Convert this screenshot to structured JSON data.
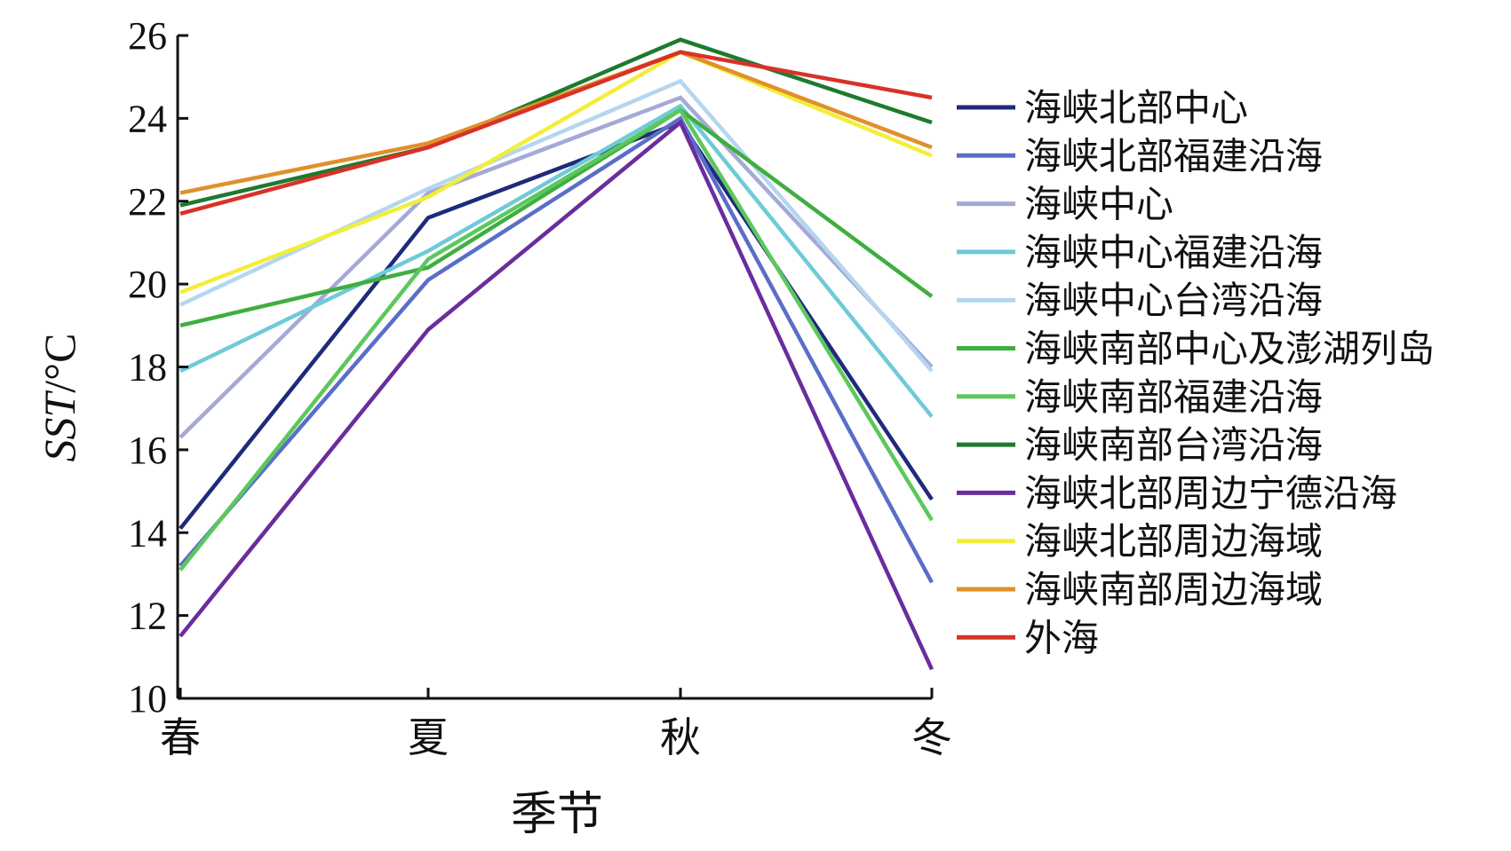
{
  "chart_data": {
    "type": "line",
    "categories": [
      "春",
      "夏",
      "秋",
      "冬"
    ],
    "xlabel": "季节",
    "ylabel_prefix": "SST",
    "ylabel_unit": "/°C",
    "ylim": [
      10,
      26
    ],
    "yticks": [
      10,
      12,
      14,
      16,
      18,
      20,
      22,
      24,
      26
    ],
    "grid": false,
    "legend_position": "right",
    "series": [
      {
        "name": "海峡北部中心",
        "color": "#1f2a7a",
        "values": [
          14.1,
          21.6,
          23.9,
          14.8
        ]
      },
      {
        "name": "海峡北部福建沿海",
        "color": "#5a6ec8",
        "values": [
          13.2,
          20.1,
          24.0,
          12.8
        ]
      },
      {
        "name": "海峡中心",
        "color": "#a5a9d6",
        "values": [
          16.3,
          22.2,
          24.5,
          18.0
        ]
      },
      {
        "name": "海峡中心福建沿海",
        "color": "#6fcad8",
        "values": [
          17.9,
          20.8,
          24.3,
          16.8
        ]
      },
      {
        "name": "海峡中心台湾沿海",
        "color": "#b4d6f0",
        "values": [
          19.5,
          22.3,
          24.9,
          17.9
        ]
      },
      {
        "name": "海峡南部中心及澎湖列岛",
        "color": "#3fae3f",
        "values": [
          19.0,
          20.4,
          24.2,
          19.7
        ]
      },
      {
        "name": "海峡南部福建沿海",
        "color": "#5cc85c",
        "values": [
          13.1,
          20.6,
          24.2,
          14.3
        ]
      },
      {
        "name": "海峡南部台湾沿海",
        "color": "#1e7a2e",
        "values": [
          21.9,
          23.3,
          25.9,
          23.9
        ]
      },
      {
        "name": "海峡北部周边宁德沿海",
        "color": "#6a2c9e",
        "values": [
          11.5,
          18.9,
          23.9,
          10.7
        ]
      },
      {
        "name": "海峡北部周边海域",
        "color": "#f2ee3a",
        "values": [
          19.8,
          22.1,
          25.6,
          23.1
        ]
      },
      {
        "name": "海峡南部周边海域",
        "color": "#e0902a",
        "values": [
          22.2,
          23.4,
          25.6,
          23.3
        ]
      },
      {
        "name": "外海",
        "color": "#d83228",
        "values": [
          21.7,
          23.3,
          25.6,
          24.5
        ]
      }
    ]
  }
}
